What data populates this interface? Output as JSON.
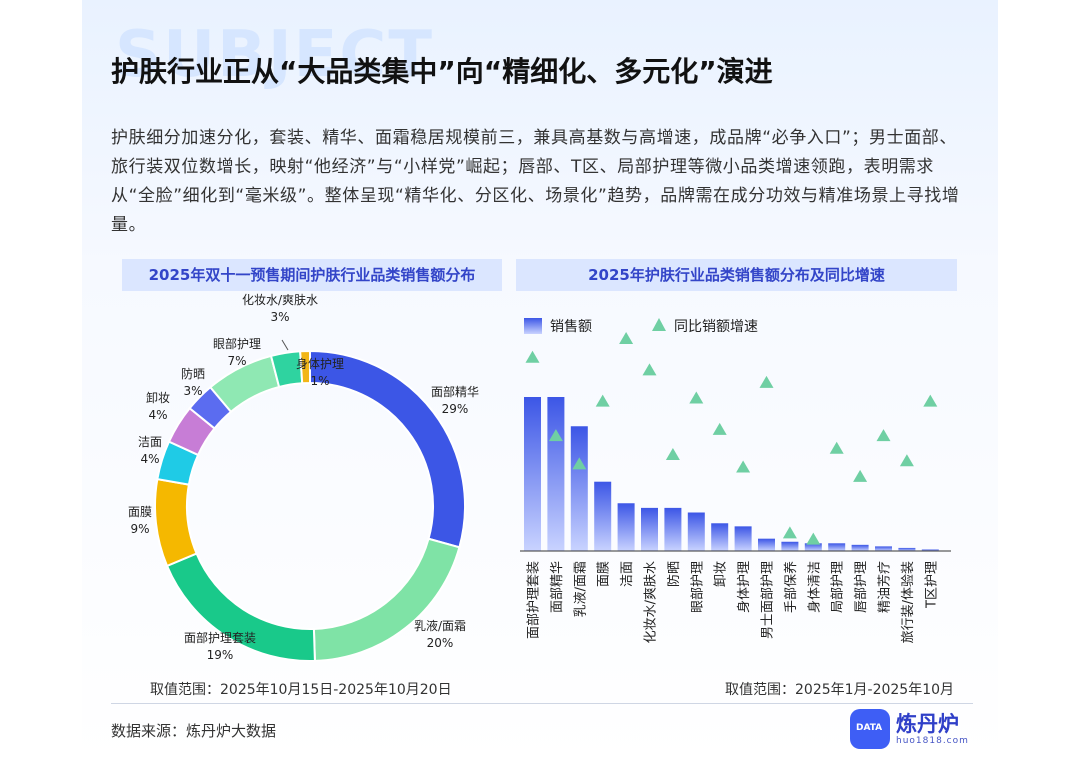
{
  "background_word": "SUBJECT",
  "title": "护肤行业正从“大品类集中”向“精细化、多元化”演进",
  "summary": "护肤细分加速分化，套装、精华、面霜稳居规模前三，兼具高基数与高增速，成品牌“必争入口”；男士面部、旅行装双位数增长，映射“他经济”与“小样党”崛起；唇部、T区、局部护理等微小品类增速领跑，表明需求从“全脸”细化到“毫米级”。整体呈现“精华化、分区化、场景化”趋势，品牌需在成分功效与精准场景上寻找增量。",
  "left_panel": {
    "heading": "2025年双十一预售期间护肤行业品类销售额分布",
    "range": "取值范围：2025年10月15日-2025年10月20日"
  },
  "right_panel": {
    "heading": "2025年护肤行业品类销售额分布及同比增速",
    "range": "取值范围：2025年1月-2025年10月"
  },
  "footer": {
    "source": "数据来源：炼丹炉大数据",
    "logo_name": "炼丹炉",
    "logo_url": "huo1818.com",
    "logo_badge": "DATA"
  },
  "chart_data": [
    {
      "type": "pie",
      "title": "2025年双十一预售期间护肤行业品类销售额分布",
      "style": "donut",
      "slices": [
        {
          "name": "面部精华",
          "value": 29,
          "label": "29%",
          "color": "#3c56e6"
        },
        {
          "name": "乳液/面霜",
          "value": 20,
          "label": "20%",
          "color": "#7fe3a6"
        },
        {
          "name": "面部护理套装",
          "value": 19,
          "label": "19%",
          "color": "#19c98a"
        },
        {
          "name": "面膜",
          "value": 9,
          "label": "9%",
          "color": "#f5b800"
        },
        {
          "name": "洁面",
          "value": 4,
          "label": "4%",
          "color": "#1fcbe6"
        },
        {
          "name": "卸妆",
          "value": 4,
          "label": "4%",
          "color": "#c77dd6"
        },
        {
          "name": "防晒",
          "value": 3,
          "label": "3%",
          "color": "#5b6cf0"
        },
        {
          "name": "眼部护理",
          "value": 7,
          "label": "7%",
          "color": "#8fe8b3"
        },
        {
          "name": "化妆水/爽肤水",
          "value": 3,
          "label": "3%",
          "color": "#2fd3a0"
        },
        {
          "name": "身体护理",
          "value": 1,
          "label": "1%",
          "color": "#f2b617"
        }
      ]
    },
    {
      "type": "bar",
      "title": "2025年护肤行业品类销售额分布及同比增速",
      "legend": [
        "销售额",
        "同比销额增速"
      ],
      "legend_position": "top-left",
      "y_axis_labels_shown": false,
      "categories": [
        "面部护理套装",
        "面部精华",
        "乳液/面霜",
        "面膜",
        "洁面",
        "化妆水/爽肤水",
        "防晒",
        "眼部护理",
        "卸妆",
        "身体护理",
        "男士面部护理",
        "手部保养",
        "身体清洁",
        "局部护理",
        "唇部护理",
        "精油芳疗",
        "旅行装/体验装",
        "T区护理"
      ],
      "series": [
        {
          "name": "销售额",
          "kind": "bar",
          "color": "#3c56e6",
          "values": [
            100,
            100,
            81,
            45,
            31,
            28,
            28,
            25,
            18,
            16,
            8,
            6,
            5,
            5,
            4,
            3,
            2,
            1
          ]
        },
        {
          "name": "同比销额增速",
          "kind": "marker-triangle",
          "color": "#6fcfa3",
          "values": [
            61,
            36,
            27,
            47,
            67,
            57,
            30,
            48,
            38,
            26,
            53,
            5,
            3,
            32,
            23,
            36,
            28,
            47
          ]
        }
      ]
    }
  ]
}
